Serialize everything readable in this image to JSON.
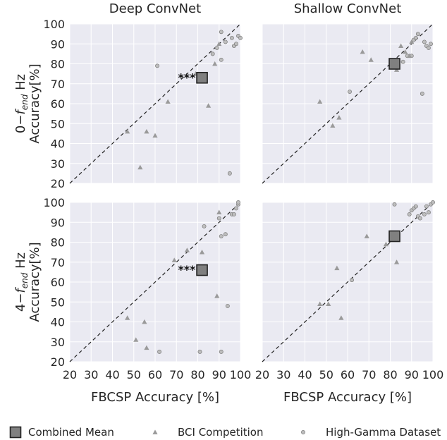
{
  "chart_data": [
    {
      "type": "scatter",
      "title": "Deep ConvNet",
      "row_label": "0−f_end Hz",
      "ylabel": "Accuracy[%]",
      "xlabel": "",
      "xlim": [
        20,
        100
      ],
      "ylim": [
        20,
        100
      ],
      "xticks": [
        20,
        30,
        40,
        50,
        60,
        70,
        80,
        90,
        100
      ],
      "yticks": [
        20,
        30,
        40,
        50,
        60,
        70,
        80,
        90,
        100
      ],
      "show_xticklabels": false,
      "show_yticklabels": true,
      "significance": "***",
      "series": [
        {
          "name": "Combined Mean",
          "marker": "square",
          "points": [
            [
              82,
              73
            ]
          ]
        },
        {
          "name": "BCI Competition",
          "marker": "triangle",
          "points": [
            [
              47,
              46
            ],
            [
              53,
              28
            ],
            [
              56,
              46
            ],
            [
              60,
              44
            ],
            [
              66,
              61
            ],
            [
              79,
              75
            ],
            [
              85,
              59
            ],
            [
              88,
              80
            ],
            [
              90,
              90
            ]
          ]
        },
        {
          "name": "High-Gamma Dataset",
          "marker": "circle",
          "points": [
            [
              61,
              79
            ],
            [
              87,
              85
            ],
            [
              89,
              88
            ],
            [
              91,
              82
            ],
            [
              91,
              96
            ],
            [
              93,
              91
            ],
            [
              95,
              25
            ],
            [
              96,
              93
            ],
            [
              97,
              89
            ],
            [
              98,
              90
            ],
            [
              99,
              94
            ],
            [
              100,
              93
            ]
          ]
        }
      ]
    },
    {
      "type": "scatter",
      "title": "Shallow ConvNet",
      "row_label": "",
      "ylabel": "",
      "xlabel": "",
      "xlim": [
        20,
        100
      ],
      "ylim": [
        20,
        100
      ],
      "xticks": [
        20,
        30,
        40,
        50,
        60,
        70,
        80,
        90,
        100
      ],
      "yticks": [
        20,
        30,
        40,
        50,
        60,
        70,
        80,
        90,
        100
      ],
      "show_xticklabels": false,
      "show_yticklabels": false,
      "significance": "",
      "series": [
        {
          "name": "Combined Mean",
          "marker": "square",
          "points": [
            [
              82,
              80
            ]
          ]
        },
        {
          "name": "BCI Competition",
          "marker": "triangle",
          "points": [
            [
              47,
              61
            ],
            [
              53,
              49
            ],
            [
              56,
              53
            ],
            [
              67,
              86
            ],
            [
              71,
              82
            ],
            [
              83,
              77
            ],
            [
              85,
              89
            ],
            [
              87,
              86
            ],
            [
              89,
              84
            ],
            [
              90,
              91
            ]
          ]
        },
        {
          "name": "High-Gamma Dataset",
          "marker": "circle",
          "points": [
            [
              61,
              66
            ],
            [
              86,
              81
            ],
            [
              88,
              84
            ],
            [
              90,
              84
            ],
            [
              91,
              92
            ],
            [
              92,
              93
            ],
            [
              93,
              95
            ],
            [
              95,
              65
            ],
            [
              96,
              91
            ],
            [
              97,
              89
            ],
            [
              98,
              88
            ],
            [
              99,
              90
            ]
          ]
        }
      ]
    },
    {
      "type": "scatter",
      "title": "",
      "row_label": "4−f_end Hz",
      "ylabel": "Accuracy[%]",
      "xlabel": "FBCSP Accuracy [%]",
      "xlim": [
        20,
        100
      ],
      "ylim": [
        20,
        100
      ],
      "xticks": [
        20,
        30,
        40,
        50,
        60,
        70,
        80,
        90,
        100
      ],
      "yticks": [
        20,
        30,
        40,
        50,
        60,
        70,
        80,
        90,
        100
      ],
      "show_xticklabels": true,
      "show_yticklabels": true,
      "significance": "***",
      "series": [
        {
          "name": "Combined Mean",
          "marker": "square",
          "points": [
            [
              82,
              66
            ]
          ]
        },
        {
          "name": "BCI Competition",
          "marker": "triangle",
          "points": [
            [
              47,
              42
            ],
            [
              51,
              31
            ],
            [
              55,
              40
            ],
            [
              56,
              27
            ],
            [
              69,
              71
            ],
            [
              75,
              76
            ],
            [
              82,
              75
            ],
            [
              89,
              53
            ],
            [
              90,
              95
            ]
          ]
        },
        {
          "name": "High-Gamma Dataset",
          "marker": "circle",
          "points": [
            [
              62,
              25
            ],
            [
              81,
              25
            ],
            [
              83,
              88
            ],
            [
              90,
              92
            ],
            [
              91,
              83
            ],
            [
              91,
              25
            ],
            [
              93,
              84
            ],
            [
              94,
              48
            ],
            [
              96,
              94
            ],
            [
              97,
              94
            ],
            [
              98,
              97
            ],
            [
              99,
              99
            ],
            [
              99,
              100
            ]
          ]
        }
      ]
    },
    {
      "type": "scatter",
      "title": "",
      "row_label": "",
      "ylabel": "",
      "xlabel": "FBCSP Accuracy [%]",
      "xlim": [
        20,
        100
      ],
      "ylim": [
        20,
        100
      ],
      "xticks": [
        20,
        30,
        40,
        50,
        60,
        70,
        80,
        90,
        100
      ],
      "yticks": [
        20,
        30,
        40,
        50,
        60,
        70,
        80,
        90,
        100
      ],
      "show_xticklabels": true,
      "show_yticklabels": false,
      "significance": "",
      "series": [
        {
          "name": "Combined Mean",
          "marker": "square",
          "points": [
            [
              82,
              83
            ]
          ]
        },
        {
          "name": "BCI Competition",
          "marker": "triangle",
          "points": [
            [
              47,
              49
            ],
            [
              51,
              49
            ],
            [
              55,
              67
            ],
            [
              57,
              42
            ],
            [
              69,
              83
            ],
            [
              78,
              79
            ],
            [
              83,
              70
            ]
          ]
        },
        {
          "name": "High-Gamma Dataset",
          "marker": "circle",
          "points": [
            [
              62,
              61
            ],
            [
              82,
              99
            ],
            [
              89,
              94
            ],
            [
              90,
              96
            ],
            [
              91,
              97
            ],
            [
              92,
              98
            ],
            [
              93,
              93
            ],
            [
              94,
              92
            ],
            [
              96,
              94
            ],
            [
              97,
              98
            ],
            [
              98,
              95
            ],
            [
              99,
              99
            ],
            [
              100,
              100
            ]
          ]
        }
      ]
    }
  ],
  "legend": {
    "placement": "bottom",
    "items": [
      {
        "name": "Combined Mean",
        "marker": "square"
      },
      {
        "name": "BCI Competition",
        "marker": "triangle"
      },
      {
        "name": "High-Gamma Dataset",
        "marker": "circle"
      }
    ]
  },
  "colors": {
    "panel_bg": "#eaeaf2",
    "mean_fill": "#808080",
    "mean_edge": "#222222",
    "bci_fill": "#9a9a9a",
    "hgd_fill": "#bdbdbd",
    "hgd_edge": "#7a7a7a"
  }
}
